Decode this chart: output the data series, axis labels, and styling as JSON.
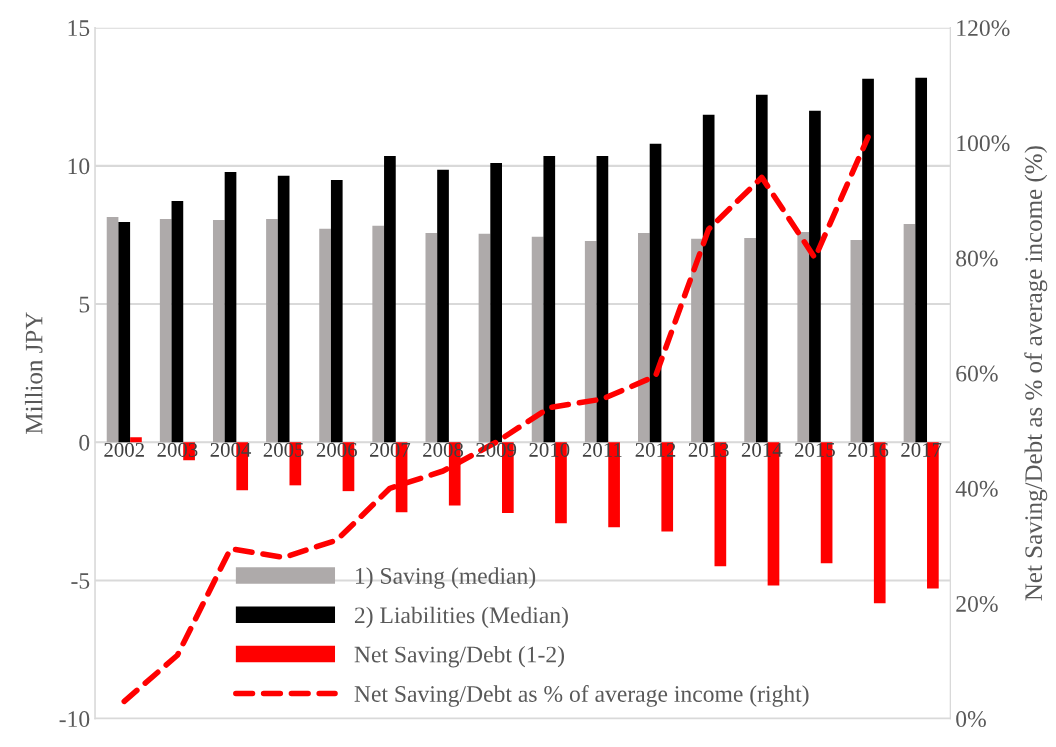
{
  "chart_data": {
    "type": "bar",
    "categories": [
      "2002",
      "2003",
      "2004",
      "2005",
      "2006",
      "2007",
      "2008",
      "2009",
      "2010",
      "2011",
      "2012",
      "2013",
      "2014",
      "2015",
      "2016",
      "2017"
    ],
    "series": [
      {
        "name": "1) Saving (median)",
        "color": "#aeaaaa",
        "values": [
          8.15,
          8.08,
          8.04,
          8.08,
          7.72,
          7.83,
          7.57,
          7.54,
          7.43,
          7.28,
          7.57,
          7.36,
          7.39,
          7.61,
          7.32,
          7.9
        ]
      },
      {
        "name": "2) Liabilities (Median)",
        "color": "#000000",
        "values": [
          7.97,
          8.73,
          9.78,
          9.64,
          9.49,
          10.36,
          9.86,
          10.1,
          10.36,
          10.36,
          10.8,
          11.85,
          12.57,
          11.99,
          13.15,
          13.19
        ]
      },
      {
        "name": "Net Saving/Debt (1-2)",
        "color": "#ff0000",
        "values": [
          0.18,
          -0.65,
          -1.74,
          -1.56,
          -1.77,
          -2.53,
          -2.29,
          -2.56,
          -2.93,
          -3.08,
          -3.23,
          -4.49,
          -5.18,
          -4.38,
          -5.83,
          -5.29
        ]
      },
      {
        "name": "Net Saving/Debt as % of average income (right)",
        "color": "#ff0000",
        "type": "line",
        "axis": "y2",
        "line_style": "dashed",
        "marker": "none",
        "values": [
          3,
          11,
          29.5,
          28,
          31,
          40,
          43,
          48,
          54,
          55.5,
          59.5,
          85,
          94,
          80,
          101,
          null
        ]
      }
    ],
    "ylabel": "Million JPY",
    "y2label": "Net Saving/Debt as % of average income (%)",
    "ylim": [
      -10,
      15
    ],
    "yticks": [
      -10,
      -5,
      0,
      5,
      10,
      15
    ],
    "y2lim": [
      0,
      120
    ],
    "y2ticks": [
      {
        "value": 0,
        "label": "0%"
      },
      {
        "value": 20,
        "label": "20%"
      },
      {
        "value": 40,
        "label": "40%"
      },
      {
        "value": 60,
        "label": "60%"
      },
      {
        "value": 80,
        "label": "80%"
      },
      {
        "value": 100,
        "label": "100%"
      },
      {
        "value": 120,
        "label": "120%"
      }
    ],
    "grid": "y",
    "legend": "bottom"
  }
}
